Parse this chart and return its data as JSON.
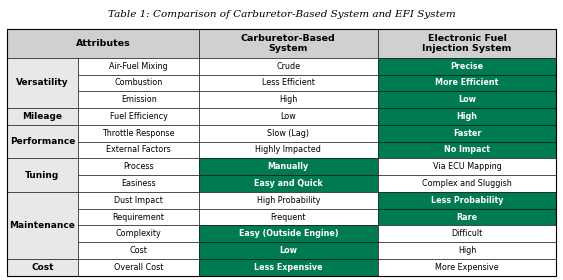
{
  "title": "Table 1: Comparison of Carburetor-Based System and EFI System",
  "col_groups": [
    {
      "label": "Versatility",
      "rows": 3
    },
    {
      "label": "Mileage",
      "rows": 1
    },
    {
      "label": "Performance",
      "rows": 2
    },
    {
      "label": "Tuning",
      "rows": 2
    },
    {
      "label": "Maintenance",
      "rows": 4
    },
    {
      "label": "Cost",
      "rows": 1
    }
  ],
  "rows": [
    {
      "sub": "Air-Fuel Mixing",
      "carb": "Crude",
      "efi": "Precise",
      "carb_green": false,
      "efi_green": true
    },
    {
      "sub": "Combustion",
      "carb": "Less Efficient",
      "efi": "More Efficient",
      "carb_green": false,
      "efi_green": true
    },
    {
      "sub": "Emission",
      "carb": "High",
      "efi": "Low",
      "carb_green": false,
      "efi_green": true
    },
    {
      "sub": "Fuel Efficiency",
      "carb": "Low",
      "efi": "High",
      "carb_green": false,
      "efi_green": true
    },
    {
      "sub": "Throttle Response",
      "carb": "Slow (Lag)",
      "efi": "Faster",
      "carb_green": false,
      "efi_green": true
    },
    {
      "sub": "External Factors",
      "carb": "Highly Impacted",
      "efi": "No Impact",
      "carb_green": false,
      "efi_green": true
    },
    {
      "sub": "Process",
      "carb": "Manually",
      "efi": "Via ECU Mapping",
      "carb_green": true,
      "efi_green": false
    },
    {
      "sub": "Easiness",
      "carb": "Easy and Quick",
      "efi": "Complex and Sluggish",
      "carb_green": true,
      "efi_green": false
    },
    {
      "sub": "Dust Impact",
      "carb": "High Probability",
      "efi": "Less Probability",
      "carb_green": false,
      "efi_green": true
    },
    {
      "sub": "Requirement",
      "carb": "Frequent",
      "efi": "Rare",
      "carb_green": false,
      "efi_green": true
    },
    {
      "sub": "Complexity",
      "carb": "Easy (Outside Engine)",
      "efi": "Difficult",
      "carb_green": true,
      "efi_green": false
    },
    {
      "sub": "Cost",
      "carb": "Low",
      "efi": "High",
      "carb_green": true,
      "efi_green": false
    },
    {
      "sub": "Overall Cost",
      "carb": "Less Expensive",
      "efi": "More Expensive",
      "carb_green": true,
      "efi_green": false
    }
  ],
  "green_color": "#007A50",
  "header_bg": "#d0d0d0",
  "white_bg": "#ffffff",
  "group_bg": "#e8e8e8",
  "border_color": "#000000",
  "text_dark": "#000000",
  "text_white": "#ffffff",
  "title_fontsize": 7.5,
  "header_fontsize": 6.8,
  "cell_fontsize": 5.8,
  "group_fontsize": 6.5
}
